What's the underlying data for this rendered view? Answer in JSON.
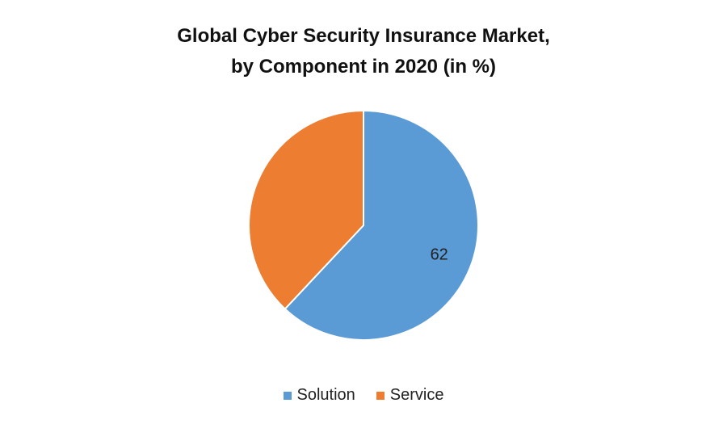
{
  "chart_data": {
    "type": "pie",
    "title_lines": [
      "Global Cyber Security Insurance Market,",
      "by Component  in 2020 (in %)"
    ],
    "slices": [
      {
        "label": "Solution",
        "value": 62,
        "color": "#5b9bd5",
        "data_label": "62"
      },
      {
        "label": "Service",
        "value": 38,
        "color": "#ed7d31",
        "data_label": ""
      }
    ],
    "start": "12 o'clock",
    "direction": "clockwise",
    "legend_position": "bottom"
  }
}
